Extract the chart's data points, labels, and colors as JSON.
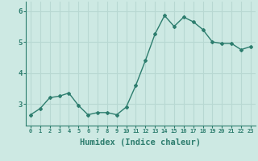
{
  "x": [
    0,
    1,
    2,
    3,
    4,
    5,
    6,
    7,
    8,
    9,
    10,
    11,
    12,
    13,
    14,
    15,
    16,
    17,
    18,
    19,
    20,
    21,
    22,
    23
  ],
  "y": [
    2.65,
    2.85,
    3.2,
    3.25,
    3.35,
    2.95,
    2.65,
    2.72,
    2.72,
    2.65,
    2.9,
    3.6,
    4.4,
    5.25,
    5.85,
    5.5,
    5.8,
    5.65,
    5.4,
    5.0,
    4.95,
    4.95,
    4.75,
    4.85
  ],
  "line_color": "#2d7d6e",
  "bg_color": "#cde9e3",
  "grid_color": "#b8d8d2",
  "xlabel": "Humidex (Indice chaleur)",
  "xlabel_fontsize": 7.5,
  "yticks": [
    3,
    4,
    5,
    6
  ],
  "ytick_labels": [
    "3",
    "4",
    "5",
    "6"
  ],
  "xtick_labels": [
    "0",
    "1",
    "2",
    "3",
    "4",
    "5",
    "6",
    "7",
    "8",
    "9",
    "10",
    "11",
    "12",
    "13",
    "14",
    "15",
    "16",
    "17",
    "18",
    "19",
    "20",
    "21",
    "22",
    "23"
  ],
  "ylim": [
    2.3,
    6.3
  ],
  "xlim": [
    -0.5,
    23.5
  ],
  "marker": "D",
  "markersize": 2.0,
  "linewidth": 1.0
}
